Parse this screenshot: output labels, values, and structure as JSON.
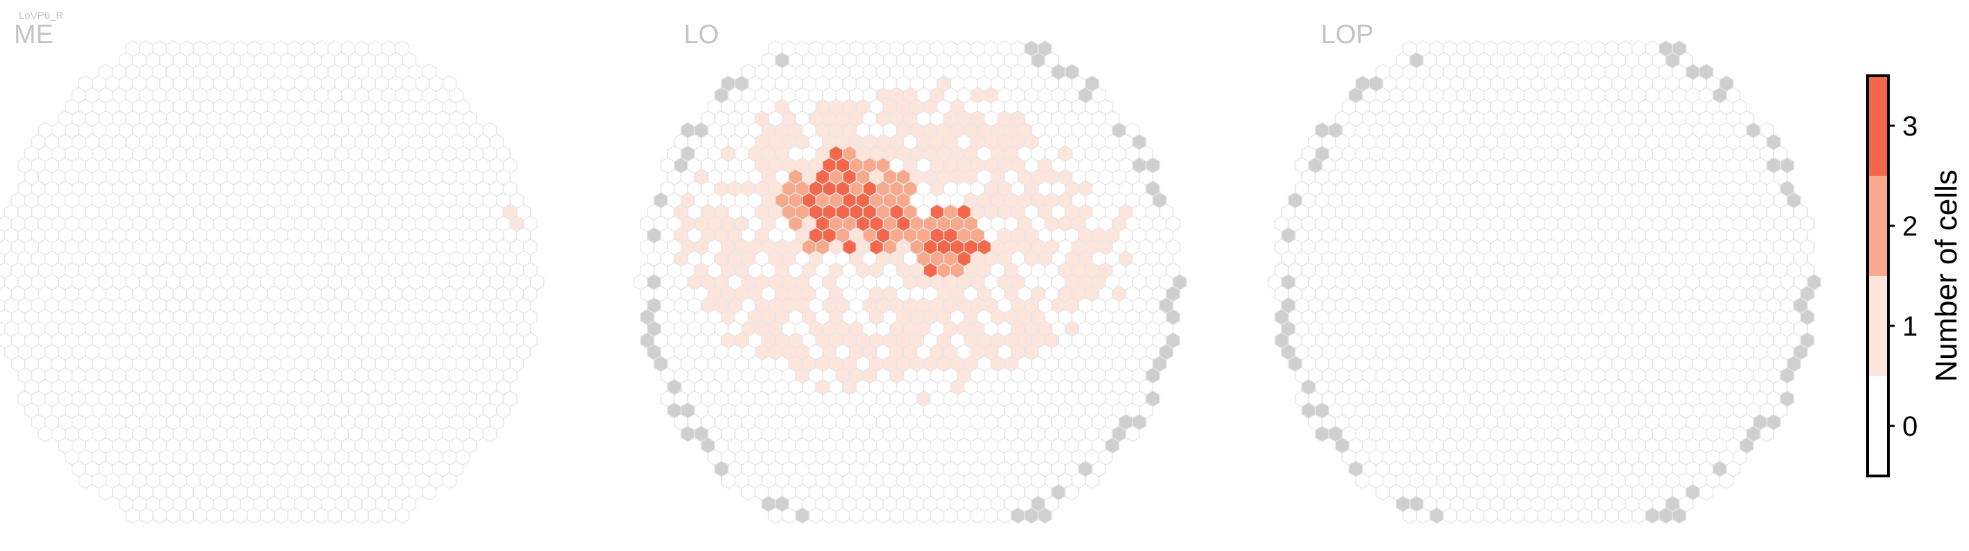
{
  "cell_type_label": "LoVP6_R",
  "panels": [
    {
      "title": "ME"
    },
    {
      "title": "LO"
    },
    {
      "title": "LOP"
    }
  ],
  "colors": {
    "count_0_fill": "#ffffff",
    "count_1_fill": "#fde5dc",
    "count_2_fill": "#f8a98c",
    "count_3_fill": "#f4674a",
    "hex_edge": "#e6e6e6",
    "outside_roi_fill": "#cfcfcf",
    "title_text": "#c4c4c4"
  },
  "chart_data": {
    "type": "heatmap",
    "description_of_values": "number of cells per hexagonal column",
    "colorbar": {
      "label": "Number of cells",
      "ticks": [
        "0",
        "1",
        "2",
        "3"
      ],
      "range": [
        0,
        3
      ]
    },
    "panels": [
      {
        "title": "ME",
        "nonzero_columns": [
          {
            "r": -6,
            "c": 18,
            "count": 1
          },
          {
            "r": -5,
            "c": 18,
            "count": 1
          }
        ]
      },
      {
        "title": "LO",
        "max_count": 3,
        "notes": "counts up to 3 concentrated in the upper-left to central region; count 1 spread broadly over the upper half",
        "gray_boundary_columns": true
      },
      {
        "title": "LOP",
        "nonzero_columns": [],
        "gray_boundary_columns": true
      }
    ]
  }
}
